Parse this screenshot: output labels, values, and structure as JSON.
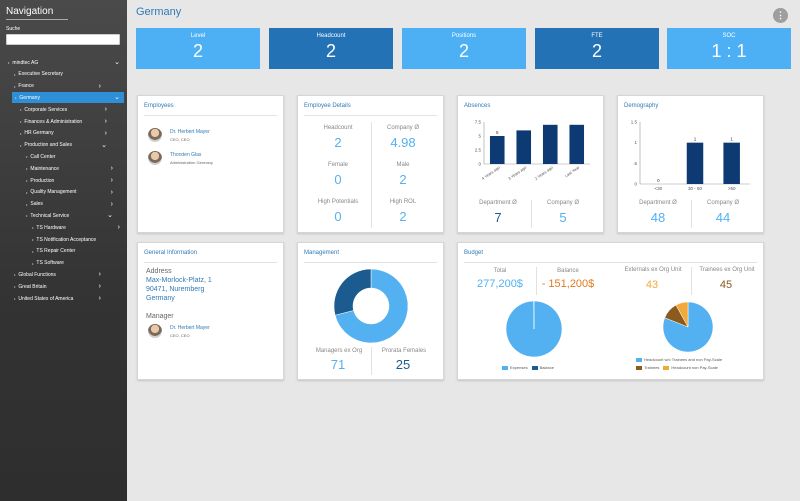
{
  "sidebar": {
    "title": "Navigation",
    "search_label": "Suche",
    "search_value": "",
    "items": [
      {
        "label": "mindtec AG",
        "indent": 0,
        "chev": "v",
        "active": false
      },
      {
        "label": "Executive Secretary",
        "indent": 1,
        "chev": "",
        "active": false
      },
      {
        "label": "France",
        "indent": 1,
        "chev": ">",
        "active": false
      },
      {
        "label": "Germany",
        "indent": 1,
        "chev": "v",
        "active": true
      },
      {
        "label": "Corporate Services",
        "indent": 2,
        "chev": ">",
        "active": false
      },
      {
        "label": "Finances & Administration",
        "indent": 2,
        "chev": ">",
        "active": false
      },
      {
        "label": "HR Germany",
        "indent": 2,
        "chev": ">",
        "active": false
      },
      {
        "label": "Production and Sales",
        "indent": 2,
        "chev": "v",
        "active": false
      },
      {
        "label": "Call Center",
        "indent": 3,
        "chev": "",
        "active": false
      },
      {
        "label": "Maintenance",
        "indent": 3,
        "chev": ">",
        "active": false
      },
      {
        "label": "Production",
        "indent": 3,
        "chev": ">",
        "active": false
      },
      {
        "label": "Quality Management",
        "indent": 3,
        "chev": ">",
        "active": false
      },
      {
        "label": "Sales",
        "indent": 3,
        "chev": ">",
        "active": false
      },
      {
        "label": "Technical Service",
        "indent": 3,
        "chev": "v",
        "active": false
      },
      {
        "label": "TS Hardware",
        "indent": 4,
        "chev": ">",
        "active": false
      },
      {
        "label": "TS Notification Acceptance",
        "indent": 4,
        "chev": "",
        "active": false
      },
      {
        "label": "TS Repair Center",
        "indent": 4,
        "chev": "",
        "active": false
      },
      {
        "label": "TS Software",
        "indent": 4,
        "chev": "",
        "active": false
      },
      {
        "label": "Global Functions",
        "indent": 1,
        "chev": ">",
        "active": false
      },
      {
        "label": "Great Britain",
        "indent": 1,
        "chev": ">",
        "active": false
      },
      {
        "label": "United States of America",
        "indent": 1,
        "chev": ">",
        "active": false
      }
    ]
  },
  "header": {
    "title": "Germany",
    "more_icon": "more-vertical-icon"
  },
  "kpis": [
    {
      "label": "Level",
      "value": "2",
      "color": "#4db0f5"
    },
    {
      "label": "Headcount",
      "value": "2",
      "color": "#2272b5"
    },
    {
      "label": "Positions",
      "value": "2",
      "color": "#4db0f5"
    },
    {
      "label": "FTE",
      "value": "2",
      "color": "#2272b5"
    },
    {
      "label": "SOC",
      "value": "1 : 1",
      "color": "#4db0f5"
    }
  ],
  "employees": {
    "title": "Employees",
    "people": [
      {
        "name": "Dr. Herbert Mayer",
        "role": "CEO, CEO"
      },
      {
        "name": "Thorsten Glas",
        "role": "Administration Germany"
      }
    ]
  },
  "employee_details": {
    "title": "Employee Details",
    "stats": [
      {
        "label": "Headcount",
        "value": "2"
      },
      {
        "label": "Company Ø",
        "value": "4.98"
      },
      {
        "label": "Female",
        "value": "0"
      },
      {
        "label": "Male",
        "value": "2"
      },
      {
        "label": "High Potentials",
        "value": "0"
      },
      {
        "label": "High ROL",
        "value": "2"
      }
    ]
  },
  "absences": {
    "title": "Absences",
    "department_label": "Department Ø",
    "department_value": "7",
    "company_label": "Company Ø",
    "company_value": "5"
  },
  "demography": {
    "title": "Demography",
    "department_label": "Department Ø",
    "department_value": "48",
    "company_label": "Company Ø",
    "company_value": "44"
  },
  "general_info": {
    "title": "General Information",
    "address_label": "Address",
    "address_lines": [
      "Max-Morlock-Platz, 1",
      "90471, Nuremberg",
      "Germany"
    ],
    "manager_label": "Manager",
    "manager_name": "Dr. Herbert Mayer",
    "manager_role": "CEO, CEO"
  },
  "management": {
    "title": "Management",
    "left_label": "Managers ex Org",
    "left_value": "71",
    "right_label": "Prorata Females",
    "right_value": "25"
  },
  "budget": {
    "title": "Budget",
    "total_label": "Total",
    "total_value": "277,200$",
    "balance_label": "Balance",
    "balance_value": "- 151,200$",
    "externals_label": "Externals ex Org Unit",
    "externals_value": "43",
    "trainees_label": "Trainees ex Org Unit",
    "trainees_value": "45"
  },
  "chart_data": [
    {
      "type": "bar",
      "name": "absences",
      "categories": [
        "4 Years ago",
        "3 Years ago",
        "2 Years ago",
        "Last Year"
      ],
      "values": [
        5,
        6,
        7,
        7
      ],
      "data_labels": [
        "5",
        "",
        "",
        ""
      ],
      "ylim": [
        0,
        7.5
      ],
      "yticks": [
        "0",
        "2.5",
        "5",
        "7.5"
      ],
      "color": "#0d3a73"
    },
    {
      "type": "bar",
      "name": "demography",
      "categories": [
        "<30",
        "30 - 50",
        ">50"
      ],
      "values": [
        0,
        1,
        1
      ],
      "data_labels": [
        "0",
        "1",
        "1"
      ],
      "ylim": [
        0,
        1.5
      ],
      "yticks": [
        "0",
        ".5",
        "1",
        "1.5"
      ],
      "color": "#0d3a73"
    },
    {
      "type": "pie",
      "name": "management",
      "donut": true,
      "slices": [
        {
          "label": "",
          "value": 71,
          "color": "#53b1f2"
        },
        {
          "label": "",
          "value": 29,
          "color": "#1b5b8f"
        }
      ]
    },
    {
      "type": "pie",
      "name": "budget-balance",
      "slices": [
        {
          "label": "Expenses",
          "value": 99.8,
          "color": "#53b1f2"
        },
        {
          "label": "Balance",
          "value": 0.2,
          "color": "#1b5b8f"
        }
      ]
    },
    {
      "type": "pie",
      "name": "budget-headcount",
      "slices": [
        {
          "label": "Headcount w/o Trainees and non Pay-Scale",
          "value": 81,
          "color": "#53b1f2"
        },
        {
          "label": "Trainees",
          "value": 11,
          "color": "#8a5a1e"
        },
        {
          "label": "Headcount non Pay-Scale",
          "value": 8,
          "color": "#f2a93b"
        }
      ]
    }
  ]
}
